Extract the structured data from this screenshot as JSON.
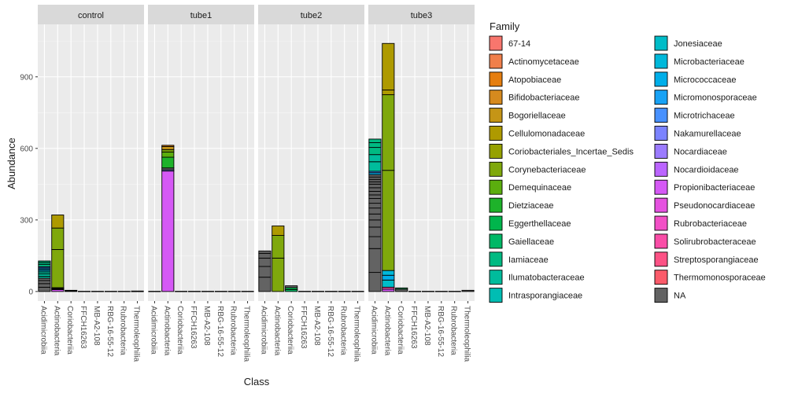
{
  "chart_data": {
    "type": "bar",
    "stacked": true,
    "faceted": true,
    "xlabel": "Class",
    "ylabel": "Abundance",
    "ylim": [
      -40,
      1120
    ],
    "yticks": [
      0,
      300,
      600,
      900
    ],
    "grid": true,
    "legend_position": "right",
    "legend_title": "Family",
    "facets": [
      "control",
      "tube1",
      "tube2",
      "tube3"
    ],
    "categories": [
      "Acidimicrobiia",
      "Actinobacteria",
      "Coriobacteriia",
      "FFCH16263",
      "MB-A2-108",
      "RBG-16-55-12",
      "Rubrobacteria",
      "Thermoleophilia"
    ],
    "families": [
      {
        "name": "67-14",
        "color": "#F8766D"
      },
      {
        "name": "Actinomycetaceae",
        "color": "#F07F4B"
      },
      {
        "name": "Atopobiaceae",
        "color": "#E57E10"
      },
      {
        "name": "Bifidobacteriaceae",
        "color": "#D68A1E"
      },
      {
        "name": "Bogoriellaceae",
        "color": "#C59516"
      },
      {
        "name": "Cellulomonadaceae",
        "color": "#AE9A00"
      },
      {
        "name": "Coriobacteriales_Incertae_Sedis",
        "color": "#96A100"
      },
      {
        "name": "Corynebacteriaceae",
        "color": "#7FA80C"
      },
      {
        "name": "Demequinaceae",
        "color": "#5BAE0E"
      },
      {
        "name": "Dietziaceae",
        "color": "#1EB22A"
      },
      {
        "name": "Eggerthellaceae",
        "color": "#00B54C"
      },
      {
        "name": "Gaiellaceae",
        "color": "#00B866"
      },
      {
        "name": "Iamiaceae",
        "color": "#00BA82"
      },
      {
        "name": "Ilumatobacteraceae",
        "color": "#00BC9C"
      },
      {
        "name": "Intrasporangiaceae",
        "color": "#00BDB3"
      },
      {
        "name": "Jonesiaceae",
        "color": "#00BCC8"
      },
      {
        "name": "Microbacteriaceae",
        "color": "#00B8DA"
      },
      {
        "name": "Micrococcaceae",
        "color": "#00AEE9"
      },
      {
        "name": "Micromonosporaceae",
        "color": "#18A2F5"
      },
      {
        "name": "Microtrichaceae",
        "color": "#4891FF"
      },
      {
        "name": "Nakamurellaceae",
        "color": "#7B83FF"
      },
      {
        "name": "Nocardiaceae",
        "color": "#9B7BFF"
      },
      {
        "name": "Nocardioidaceae",
        "color": "#BB65FF"
      },
      {
        "name": "Propionibacteriaceae",
        "color": "#D559F5"
      },
      {
        "name": "Pseudonocardiaceae",
        "color": "#E552E0"
      },
      {
        "name": "Rubrobacteriaceae",
        "color": "#F24FC6"
      },
      {
        "name": "Solirubrobacteraceae",
        "color": "#F94DA7"
      },
      {
        "name": "Streptosporangiaceae",
        "color": "#FC5285"
      },
      {
        "name": "Thermomonosporaceae",
        "color": "#FB5B6A"
      },
      {
        "name": "NA",
        "color": "#636363"
      }
    ],
    "bars": {
      "control": {
        "Acidimicrobiia": [
          {
            "family": "NA",
            "values": [
              18,
              15,
              13,
              10
            ]
          },
          {
            "family": "Ilumatobacteraceae",
            "values": [
              8,
              10,
              8
            ]
          },
          {
            "family": "Jonesiaceae",
            "values": [
              6
            ]
          },
          {
            "family": "Micrococcaceae",
            "values": [
              6
            ]
          },
          {
            "family": "Micromonosporaceae",
            "values": [
              5
            ]
          },
          {
            "family": "Microtrichaceae",
            "values": [
              5
            ]
          },
          {
            "family": "Iamiaceae",
            "values": [
              10,
              8,
              6
            ]
          }
        ],
        "Actinobacteria": [
          {
            "family": "Propionibacteriaceae",
            "values": [
              8
            ]
          },
          {
            "family": "Solirubrobacteraceae",
            "values": [
              3
            ]
          },
          {
            "family": "Micrococcaceae",
            "values": [
              2
            ]
          },
          {
            "family": "Demequinaceae",
            "values": [
              3
            ]
          },
          {
            "family": "Corynebacteriaceae",
            "values": [
              160,
              90
            ]
          },
          {
            "family": "Cellulomonadaceae",
            "values": [
              55
            ]
          }
        ],
        "Coriobacteriia": [
          {
            "family": "NA",
            "values": [
              2
            ]
          },
          {
            "family": "Eggerthellaceae",
            "values": [
              3
            ]
          }
        ],
        "FFCH16263": [
          {
            "family": "NA",
            "values": [
              1
            ]
          }
        ],
        "MB-A2-108": [
          {
            "family": "NA",
            "values": [
              1
            ]
          }
        ],
        "RBG-16-55-12": [
          {
            "family": "NA",
            "values": [
              1
            ]
          }
        ],
        "Rubrobacteria": [
          {
            "family": "NA",
            "values": [
              1
            ]
          }
        ],
        "Thermoleophilia": [
          {
            "family": "NA",
            "values": [
              1
            ]
          },
          {
            "family": "Gaiellaceae",
            "values": [
              1
            ]
          }
        ]
      },
      "tube1": {
        "Acidimicrobiia": [
          {
            "family": "NA",
            "values": [
              1
            ]
          }
        ],
        "Actinobacteria": [
          {
            "family": "Propionibacteriaceae",
            "values": [
              505
            ]
          },
          {
            "family": "Nakamurellaceae",
            "values": [
              5
            ]
          },
          {
            "family": "NA",
            "values": [
              8
            ]
          },
          {
            "family": "Dietziaceae",
            "values": [
              45
            ]
          },
          {
            "family": "Demequinaceae",
            "values": [
              22
            ]
          },
          {
            "family": "Corynebacteriaceae",
            "values": [
              10
            ]
          },
          {
            "family": "Bogoriellaceae",
            "values": [
              13
            ]
          },
          {
            "family": "Atopobiaceae",
            "values": [
              5
            ]
          }
        ],
        "Coriobacteriia": [
          {
            "family": "NA",
            "values": [
              1
            ]
          }
        ],
        "FFCH16263": [
          {
            "family": "NA",
            "values": [
              1
            ]
          }
        ],
        "MB-A2-108": [
          {
            "family": "NA",
            "values": [
              1
            ]
          }
        ],
        "RBG-16-55-12": [
          {
            "family": "NA",
            "values": [
              1
            ]
          }
        ],
        "Rubrobacteria": [
          {
            "family": "NA",
            "values": [
              1
            ]
          }
        ],
        "Thermoleophilia": [
          {
            "family": "NA",
            "values": [
              1
            ]
          }
        ]
      },
      "tube2": {
        "Acidimicrobiia": [
          {
            "family": "NA",
            "values": [
              60,
              45,
              35,
              20,
              10
            ]
          }
        ],
        "Actinobacteria": [
          {
            "family": "Corynebacteriaceae",
            "values": [
              140,
              95
            ]
          },
          {
            "family": "Cellulomonadaceae",
            "values": [
              40
            ]
          }
        ],
        "Coriobacteriia": [
          {
            "family": "Gaiellaceae",
            "values": [
              8
            ]
          },
          {
            "family": "Eggerthellaceae",
            "values": [
              8
            ]
          },
          {
            "family": "NA",
            "values": [
              8
            ]
          }
        ],
        "FFCH16263": [
          {
            "family": "NA",
            "values": [
              1
            ]
          }
        ],
        "MB-A2-108": [
          {
            "family": "NA",
            "values": [
              1
            ]
          }
        ],
        "RBG-16-55-12": [
          {
            "family": "NA",
            "values": [
              1
            ]
          }
        ],
        "Rubrobacteria": [
          {
            "family": "NA",
            "values": [
              1
            ]
          }
        ],
        "Thermoleophilia": [
          {
            "family": "NA",
            "values": [
              1
            ]
          }
        ]
      },
      "tube3": {
        "Acidimicrobiia": [
          {
            "family": "NA",
            "values": [
              80,
              100,
              50,
              40,
              30,
              25,
              25,
              20,
              20,
              15,
              15,
              15,
              15,
              10,
              10,
              10,
              10
            ]
          },
          {
            "family": "Micrococcaceae",
            "values": [
              8
            ]
          },
          {
            "family": "Microtrichaceae",
            "values": [
              6
            ]
          },
          {
            "family": "Ilumatobacteraceae",
            "values": [
              40,
              30
            ]
          },
          {
            "family": "Iamiaceae",
            "values": [
              30,
              20,
              15
            ]
          }
        ],
        "Actinobacteria": [
          {
            "family": "Propionibacteriaceae",
            "values": [
              10
            ]
          },
          {
            "family": "Solirubrobacteraceae",
            "values": [
              8
            ]
          },
          {
            "family": "Jonesiaceae",
            "values": [
              30
            ]
          },
          {
            "family": "Micrococcaceae",
            "values": [
              20
            ]
          },
          {
            "family": "Microbacteriaceae",
            "values": [
              20
            ]
          },
          {
            "family": "Corynebacteriaceae",
            "values": [
              420,
              317
            ]
          },
          {
            "family": "Cellulomonadaceae",
            "values": [
              20,
              195
            ]
          }
        ],
        "Coriobacteriia": [
          {
            "family": "NA",
            "values": [
              10
            ]
          },
          {
            "family": "Gaiellaceae",
            "values": [
              5
            ]
          }
        ],
        "FFCH16263": [
          {
            "family": "NA",
            "values": [
              1
            ]
          }
        ],
        "MB-A2-108": [
          {
            "family": "NA",
            "values": [
              1
            ]
          }
        ],
        "RBG-16-55-12": [
          {
            "family": "NA",
            "values": [
              1
            ]
          }
        ],
        "Rubrobacteria": [
          {
            "family": "NA",
            "values": [
              1
            ]
          }
        ],
        "Thermoleophilia": [
          {
            "family": "NA",
            "values": [
              5
            ]
          }
        ]
      }
    }
  }
}
